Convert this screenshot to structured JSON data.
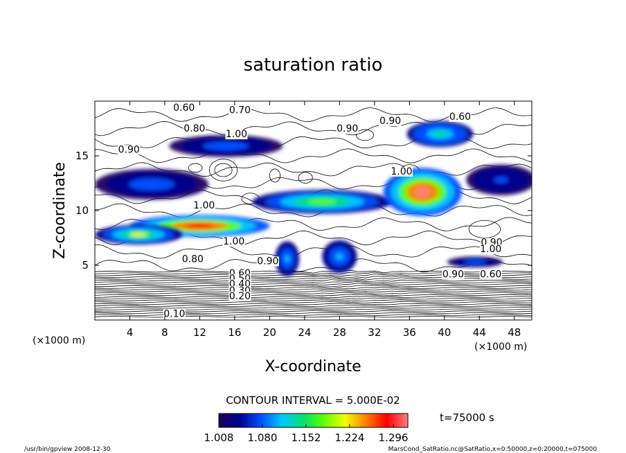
{
  "chart_data": {
    "type": "heatmap",
    "title": "saturation ratio",
    "xlabel": "X-coordinate",
    "ylabel": "Z-coordinate",
    "x_unit": "(×1000 m)",
    "y_unit": "(×1000 m)",
    "xlim": [
      0,
      50
    ],
    "ylim": [
      0,
      20
    ],
    "x_ticks": [
      4,
      8,
      12,
      16,
      20,
      24,
      28,
      32,
      36,
      40,
      44,
      48
    ],
    "y_ticks": [
      5,
      10,
      15
    ],
    "contour_interval": "CONTOUR INTERVAL = 5.000E-02",
    "colorbar": {
      "ticks": [
        "1.008",
        "1.080",
        "1.152",
        "1.224",
        "1.296"
      ],
      "range": [
        1.008,
        1.32
      ],
      "colors": [
        "#1a0060",
        "#00008c",
        "#0050ff",
        "#00c8ff",
        "#00e070",
        "#60ff00",
        "#f0ff00",
        "#ff8000",
        "#ff0000",
        "#ff8080"
      ]
    },
    "contour_labels": [
      {
        "text": "0.60",
        "x": 10.2,
        "z": 19.1
      },
      {
        "text": "0.70",
        "x": 16.6,
        "z": 18.9
      },
      {
        "text": "0.60",
        "x": 41.8,
        "z": 18.3
      },
      {
        "text": "0.80",
        "x": 11.4,
        "z": 17.2
      },
      {
        "text": "1.00",
        "x": 16.2,
        "z": 16.7
      },
      {
        "text": "0.90",
        "x": 28.9,
        "z": 17.2
      },
      {
        "text": "0.90",
        "x": 33.8,
        "z": 17.9
      },
      {
        "text": "0.90",
        "x": 3.9,
        "z": 15.3
      },
      {
        "text": "1.00",
        "x": 35.1,
        "z": 13.3
      },
      {
        "text": "1.00",
        "x": 12.5,
        "z": 10.2
      },
      {
        "text": "1.00",
        "x": 15.9,
        "z": 6.9
      },
      {
        "text": "0.80",
        "x": 11.2,
        "z": 5.3
      },
      {
        "text": "0.90",
        "x": 19.8,
        "z": 5.1
      },
      {
        "text": "0.90",
        "x": 45.4,
        "z": 6.8
      },
      {
        "text": "1.00",
        "x": 45.3,
        "z": 6.2
      },
      {
        "text": "0.90",
        "x": 41.0,
        "z": 3.9
      },
      {
        "text": "0.60",
        "x": 45.3,
        "z": 3.9
      },
      {
        "text": "0.60",
        "x": 16.6,
        "z": 4.0
      },
      {
        "text": "0.50",
        "x": 16.6,
        "z": 3.5
      },
      {
        "text": "0.40",
        "x": 16.6,
        "z": 3.0
      },
      {
        "text": "0.30",
        "x": 16.6,
        "z": 2.4
      },
      {
        "text": "0.20",
        "x": 16.6,
        "z": 1.9
      },
      {
        "text": "0.10",
        "x": 9.1,
        "z": 0.3
      }
    ],
    "supersaturated_regions": [
      {
        "name": "upper-band-left",
        "cx": 15,
        "cz": 15.9,
        "rx": 6.5,
        "rz": 1.0,
        "peak": 1.09
      },
      {
        "name": "middle-band",
        "cx": 6.5,
        "cz": 12.4,
        "rx": 6.5,
        "rz": 1.4,
        "peak": 1.08
      },
      {
        "name": "diagonal-band-core",
        "cx": 12,
        "cz": 8.6,
        "rx": 8.0,
        "rz": 1.0,
        "peak": 1.3
      },
      {
        "name": "diagonal-band-mid",
        "cx": 26,
        "cz": 10.8,
        "rx": 8.0,
        "rz": 1.1,
        "peak": 1.18
      },
      {
        "name": "right-plume",
        "cx": 37.5,
        "cz": 11.7,
        "rx": 4.5,
        "rz": 2.2,
        "peak": 1.31
      },
      {
        "name": "top-right-cloud",
        "cx": 39.5,
        "cz": 17.0,
        "rx": 3.8,
        "rz": 1.2,
        "peak": 1.15
      },
      {
        "name": "right-band",
        "cx": 46.5,
        "cz": 12.8,
        "rx": 4.0,
        "rz": 1.4,
        "peak": 1.06
      },
      {
        "name": "lower-band-left",
        "cx": 5,
        "cz": 7.8,
        "rx": 5.0,
        "rz": 0.9,
        "peak": 1.2
      },
      {
        "name": "surface-bubble-1",
        "cx": 22,
        "cz": 5.6,
        "rx": 1.4,
        "rz": 1.6,
        "peak": 1.1
      },
      {
        "name": "surface-bubble-2",
        "cx": 28,
        "cz": 5.8,
        "rx": 2.0,
        "rz": 1.5,
        "peak": 1.1
      },
      {
        "name": "surface-band-right",
        "cx": 43.5,
        "cz": 5.3,
        "rx": 3.2,
        "rz": 0.5,
        "peak": 1.08
      }
    ],
    "legend_time": "t=75000 s",
    "footer_left": "/usr/bin/gpview  2008-12-30",
    "footer_right": "MarsCond_SatRatio.nc@SatRatio,x=0:50000,z=0:20000,t=075000"
  }
}
